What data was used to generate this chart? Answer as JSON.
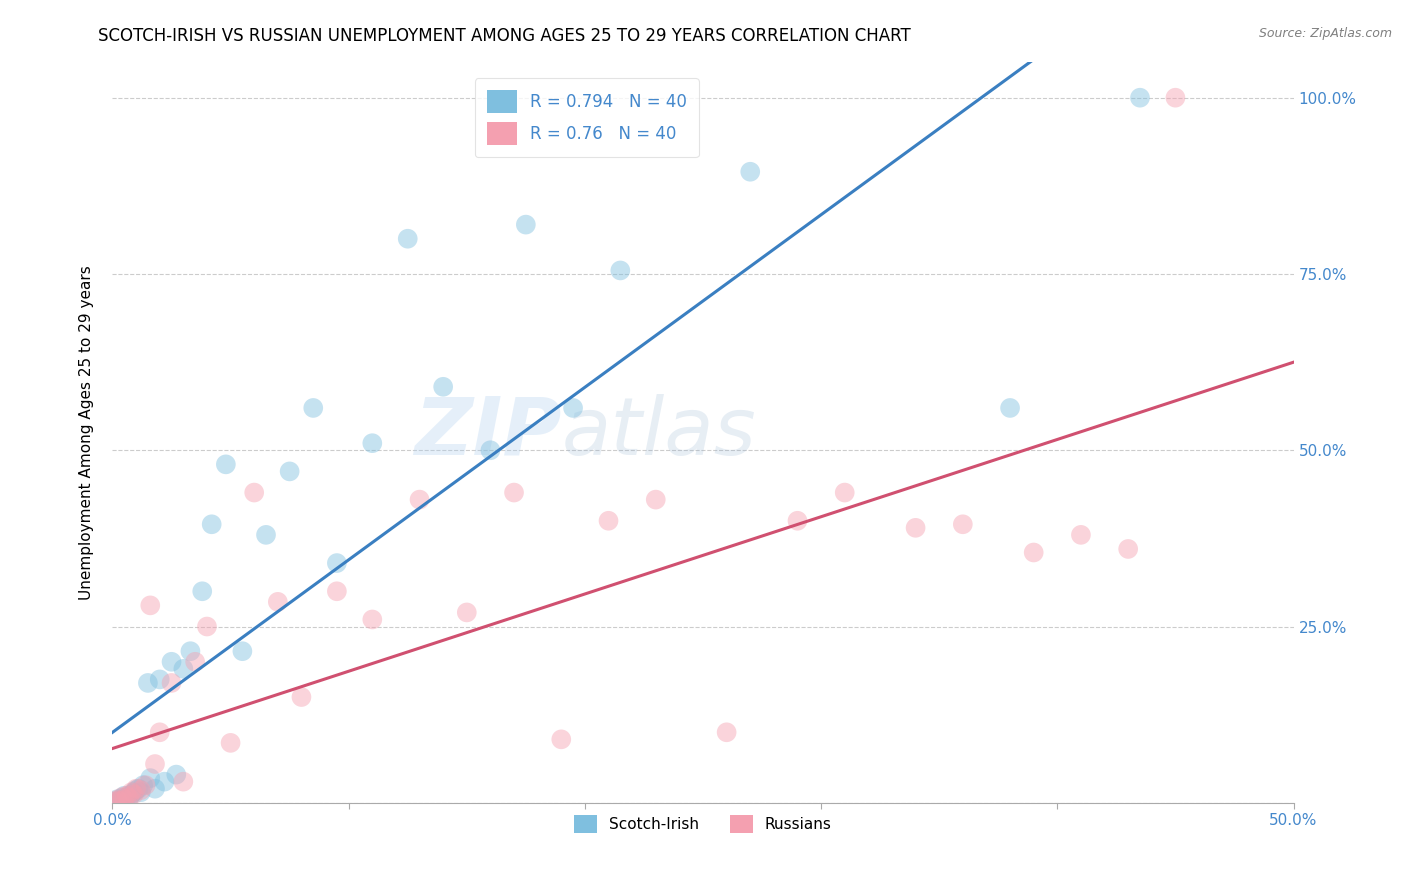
{
  "title": "SCOTCH-IRISH VS RUSSIAN UNEMPLOYMENT AMONG AGES 25 TO 29 YEARS CORRELATION CHART",
  "source": "Source: ZipAtlas.com",
  "ylabel": "Unemployment Among Ages 25 to 29 years",
  "xlim": [
    0.0,
    0.5
  ],
  "ylim": [
    0.0,
    1.05
  ],
  "xticks": [
    0.0,
    0.1,
    0.2,
    0.3,
    0.4,
    0.5
  ],
  "yticks": [
    0.0,
    0.25,
    0.5,
    0.75,
    1.0
  ],
  "right_yticklabels": [
    "",
    "25.0%",
    "50.0%",
    "75.0%",
    "100.0%"
  ],
  "bottom_xticklabels_show": [
    "0.0%",
    "50.0%"
  ],
  "scotch_irish_color": "#7fbfdf",
  "russian_color": "#f4a0b0",
  "scotch_irish_line_color": "#3a7fc1",
  "russian_line_color": "#d05070",
  "scotch_irish_R": 0.794,
  "scotch_irish_N": 40,
  "russian_R": 0.76,
  "russian_N": 40,
  "watermark_zip": "ZIP",
  "watermark_atlas": "atlas",
  "scotch_irish_x": [
    0.001,
    0.002,
    0.003,
    0.004,
    0.005,
    0.006,
    0.007,
    0.008,
    0.009,
    0.01,
    0.011,
    0.012,
    0.013,
    0.015,
    0.016,
    0.018,
    0.02,
    0.022,
    0.025,
    0.027,
    0.03,
    0.033,
    0.038,
    0.042,
    0.048,
    0.055,
    0.065,
    0.075,
    0.085,
    0.095,
    0.11,
    0.125,
    0.14,
    0.16,
    0.175,
    0.195,
    0.215,
    0.27,
    0.38,
    0.435
  ],
  "scotch_irish_y": [
    0.002,
    0.005,
    0.003,
    0.007,
    0.01,
    0.008,
    0.006,
    0.012,
    0.015,
    0.018,
    0.02,
    0.015,
    0.025,
    0.17,
    0.035,
    0.02,
    0.175,
    0.03,
    0.2,
    0.04,
    0.19,
    0.215,
    0.3,
    0.395,
    0.48,
    0.215,
    0.38,
    0.47,
    0.56,
    0.34,
    0.51,
    0.8,
    0.59,
    0.5,
    0.82,
    0.56,
    0.755,
    0.895,
    0.56,
    1.0
  ],
  "russian_x": [
    0.001,
    0.002,
    0.003,
    0.004,
    0.005,
    0.006,
    0.007,
    0.008,
    0.009,
    0.01,
    0.012,
    0.014,
    0.016,
    0.018,
    0.02,
    0.025,
    0.03,
    0.035,
    0.04,
    0.05,
    0.06,
    0.07,
    0.08,
    0.095,
    0.11,
    0.13,
    0.15,
    0.17,
    0.19,
    0.21,
    0.23,
    0.26,
    0.29,
    0.31,
    0.34,
    0.36,
    0.39,
    0.41,
    0.43,
    0.45
  ],
  "russian_y": [
    0.002,
    0.004,
    0.003,
    0.008,
    0.005,
    0.01,
    0.007,
    0.015,
    0.012,
    0.02,
    0.018,
    0.025,
    0.28,
    0.055,
    0.1,
    0.17,
    0.03,
    0.2,
    0.25,
    0.085,
    0.44,
    0.285,
    0.15,
    0.3,
    0.26,
    0.43,
    0.27,
    0.44,
    0.09,
    0.4,
    0.43,
    0.1,
    0.4,
    0.44,
    0.39,
    0.395,
    0.355,
    0.38,
    0.36,
    1.0
  ],
  "background_color": "#ffffff",
  "grid_color": "#cccccc",
  "marker_size": 200,
  "marker_alpha": 0.45,
  "label_color": "#4488cc",
  "title_fontsize": 12,
  "axis_fontsize": 11,
  "tick_fontsize": 11
}
